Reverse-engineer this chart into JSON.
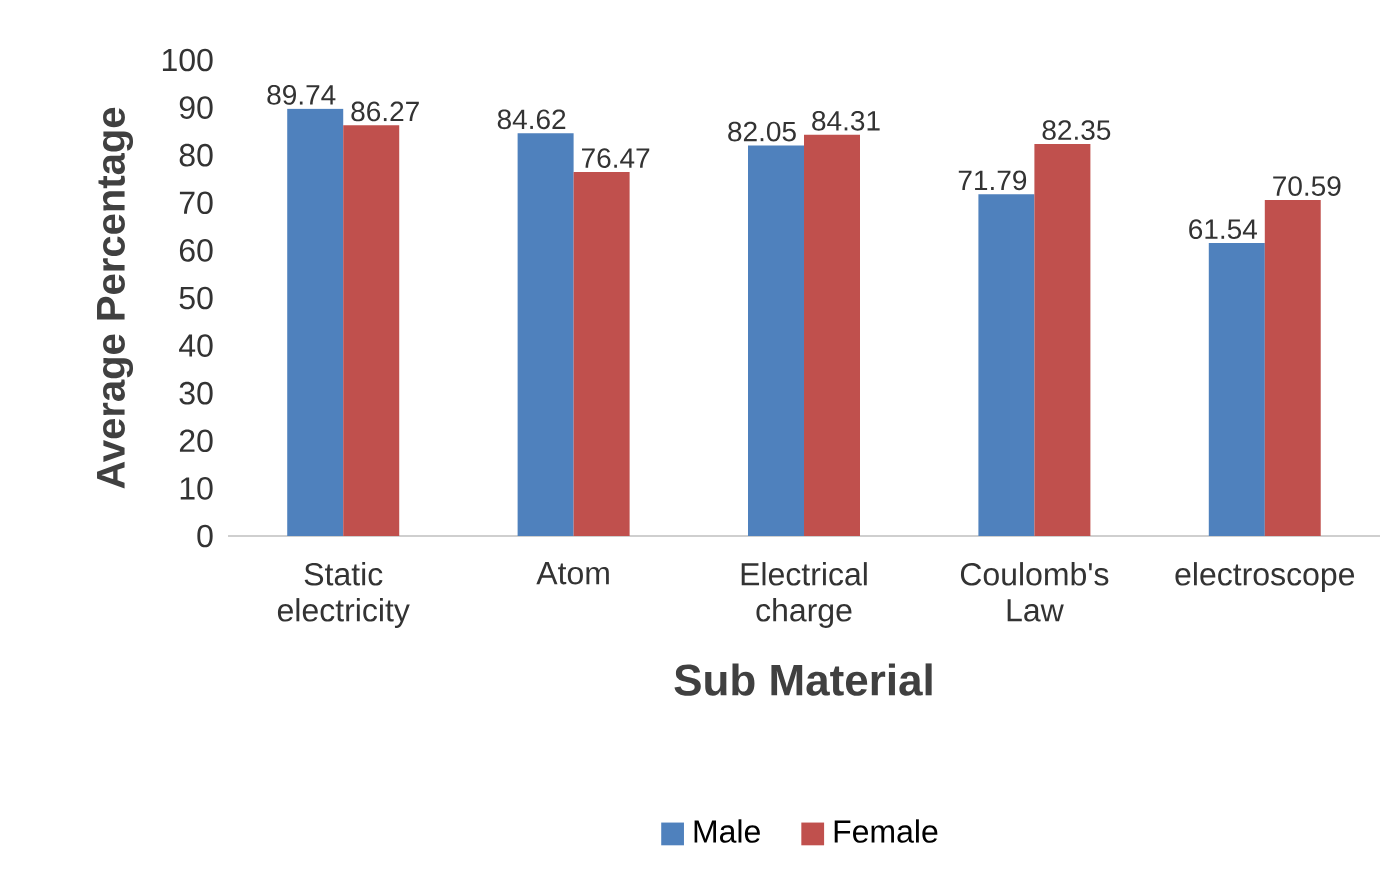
{
  "chart_data": {
    "type": "bar",
    "xlabel": "Sub Material",
    "ylabel": "Average Percentage",
    "categories": [
      "Static electricity",
      "Atom",
      "Electrical charge",
      "Coulomb's Law",
      "electroscope"
    ],
    "series": [
      {
        "name": "Male",
        "color": "#4f81bd",
        "values": [
          89.74,
          84.62,
          82.05,
          71.79,
          61.54
        ]
      },
      {
        "name": "Female",
        "color": "#c0504d",
        "values": [
          86.27,
          76.47,
          84.31,
          82.35,
          70.59
        ]
      }
    ],
    "ylim": [
      0,
      100
    ],
    "yticks": [
      0,
      10,
      20,
      30,
      40,
      50,
      60,
      70,
      80,
      90,
      100
    ],
    "grid": false,
    "legend": "bottom",
    "data_labels": true
  }
}
